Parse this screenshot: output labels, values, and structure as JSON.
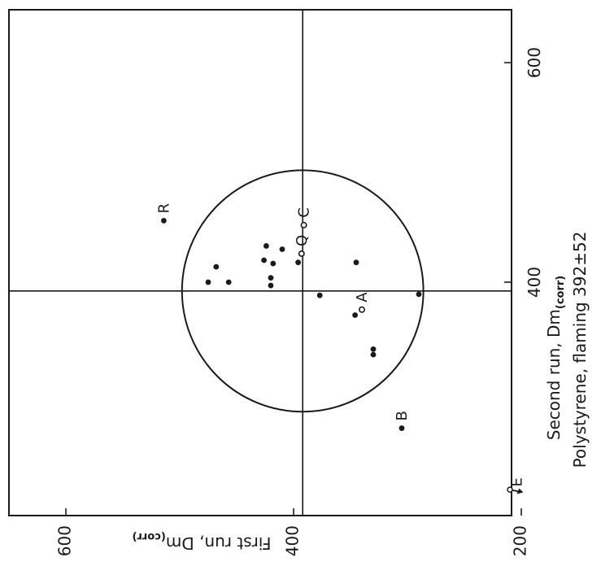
{
  "chart_data": {
    "type": "scatter",
    "subtitle": "Polystyrene, flaming  392±52",
    "xlabel": "Second run, Dm",
    "xlabel_sub": "(corr)",
    "ylabel": "First run, Dm",
    "ylabel_sub": "(corr)",
    "xlim": [
      200,
      650
    ],
    "ylim": [
      200,
      650
    ],
    "x_ticks": [
      {
        "value": 400,
        "label": "400"
      },
      {
        "value": 600,
        "label": "600"
      }
    ],
    "y_ticks": [
      {
        "value": 200,
        "label": "200"
      },
      {
        "value": 400,
        "label": "400"
      },
      {
        "value": 600,
        "label": "600"
      }
    ],
    "center": {
      "x": 392,
      "y": 392
    },
    "radius": 106,
    "grid": false,
    "legend": "none",
    "labeled_points": [
      {
        "label": "R",
        "x": 456,
        "y": 514,
        "marker": "filled"
      },
      {
        "label": "C",
        "x": 452,
        "y": 391,
        "marker": "open"
      },
      {
        "label": "Q",
        "x": 426,
        "y": 393,
        "marker": "open"
      },
      {
        "label": "A",
        "x": 375,
        "y": 340,
        "marker": "open"
      },
      {
        "label": "B",
        "x": 267,
        "y": 305,
        "marker": "filled"
      },
      {
        "label": "E",
        "x": 207,
        "y": 204,
        "x2": 211,
        "y2": 210,
        "marker": "arrow"
      }
    ],
    "points": [
      {
        "x": 400,
        "y": 475
      },
      {
        "x": 414,
        "y": 468
      },
      {
        "x": 400,
        "y": 457
      },
      {
        "x": 433,
        "y": 424
      },
      {
        "x": 420,
        "y": 426
      },
      {
        "x": 404,
        "y": 420
      },
      {
        "x": 417,
        "y": 418
      },
      {
        "x": 397,
        "y": 420
      },
      {
        "x": 430,
        "y": 410
      },
      {
        "x": 418,
        "y": 396
      },
      {
        "x": 388,
        "y": 377
      },
      {
        "x": 370,
        "y": 346
      },
      {
        "x": 418,
        "y": 345
      },
      {
        "x": 339,
        "y": 330
      },
      {
        "x": 334,
        "y": 330
      },
      {
        "x": 389,
        "y": 290
      }
    ]
  }
}
